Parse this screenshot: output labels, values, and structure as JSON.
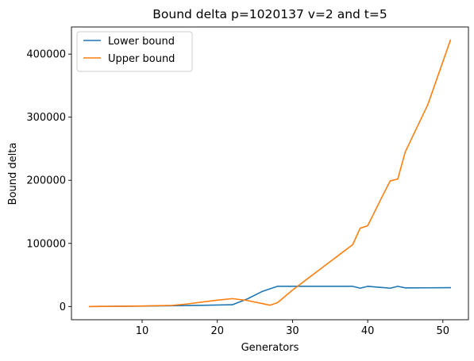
{
  "chart_data": {
    "type": "line",
    "title": "Bound delta p=1020137 v=2 and t=5",
    "xlabel": "Generators",
    "ylabel": "Bound delta",
    "xlim": [
      0.6,
      53.4
    ],
    "ylim": [
      -21000,
      443000
    ],
    "xticks": [
      10,
      20,
      30,
      40,
      50
    ],
    "yticks": [
      0,
      100000,
      200000,
      300000,
      400000
    ],
    "legend_position": "top-left",
    "grid": false,
    "series": [
      {
        "name": "Lower bound",
        "color": "#1f77b4",
        "x": [
          3,
          5,
          8,
          10,
          12,
          14,
          16,
          18,
          20,
          22,
          24,
          26,
          28,
          30,
          32,
          34,
          36,
          38,
          39,
          40,
          41,
          42,
          43,
          44,
          45,
          46,
          48,
          51
        ],
        "y": [
          0,
          200,
          400,
          600,
          900,
          1200,
          1500,
          1900,
          2300,
          2800,
          12000,
          24000,
          32000,
          32000,
          32000,
          32000,
          32000,
          32000,
          29000,
          32000,
          31000,
          30000,
          29000,
          32000,
          29500,
          29500,
          29600,
          29800
        ]
      },
      {
        "name": "Upper bound",
        "color": "#ff7f0e",
        "x": [
          3,
          5,
          8,
          10,
          12,
          14,
          16,
          18,
          20,
          22,
          24,
          26,
          27,
          28,
          30,
          32,
          34,
          36,
          38,
          39,
          40,
          41,
          42,
          43,
          44,
          45,
          46,
          48,
          51
        ],
        "y": [
          0,
          200,
          500,
          800,
          1200,
          1800,
          4000,
          7000,
          10000,
          12500,
          9500,
          4500,
          2000,
          6000,
          26000,
          44000,
          62000,
          80000,
          98000,
          124000,
          128000,
          152000,
          176000,
          199000,
          202000,
          245000,
          270000,
          320000,
          422000
        ]
      }
    ]
  }
}
